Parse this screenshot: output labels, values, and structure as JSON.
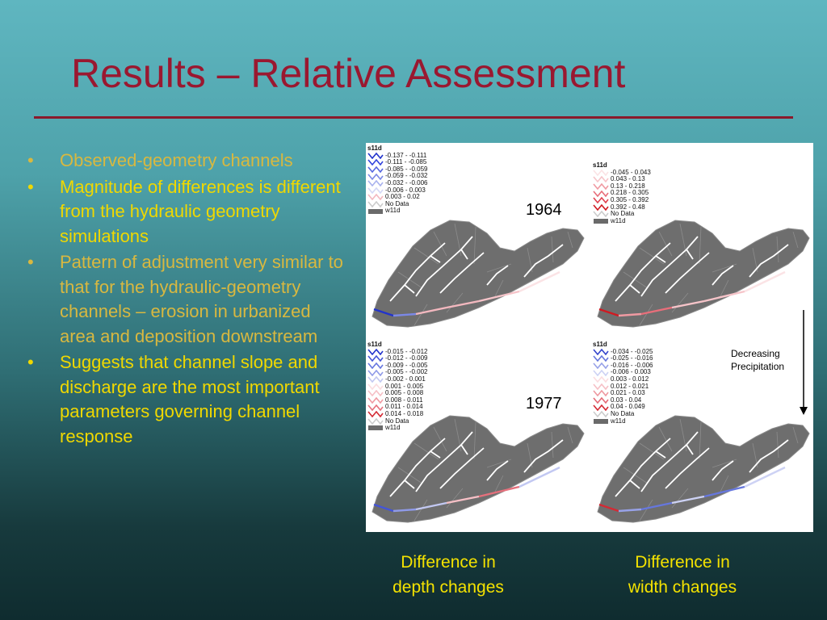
{
  "slide": {
    "title": "Results – Relative Assessment",
    "bullets": [
      {
        "text": "Observed-geometry channels",
        "dim": true
      },
      {
        "text": "Magnitude of differences is different from the hydraulic geometry simulations",
        "dim": false
      },
      {
        "text": "Pattern of adjustment very similar to that for the hydraulic-geometry channels – erosion in urbanized area and deposition downstream",
        "dim": true
      },
      {
        "text": "Suggests that channel slope and discharge are the most important parameters governing channel response",
        "dim": false
      }
    ],
    "bullet_glyph": "•"
  },
  "figure": {
    "year_1964": "1964",
    "year_1977": "1977",
    "decreasing": "Decreasing",
    "precipitation": "Precipitation",
    "panels": [
      {
        "legend_title": "s11d",
        "items": [
          {
            "label": "-0.137 - -0.111",
            "color": "#2233cc"
          },
          {
            "label": "-0.111 - -0.085",
            "color": "#3344dd"
          },
          {
            "label": "-0.085 - -0.059",
            "color": "#5566e0"
          },
          {
            "label": "-0.059 - -0.032",
            "color": "#7b88e6"
          },
          {
            "label": "-0.032 - -0.006",
            "color": "#a9b2ee"
          },
          {
            "label": "-0.006 - 0.003",
            "color": "#d4d8f6"
          },
          {
            "label": "0.003 - 0.02",
            "color": "#f3b8bf"
          },
          {
            "label": "No Data",
            "color": "none"
          },
          {
            "label": "w11d",
            "color": "swatch"
          }
        ]
      },
      {
        "legend_title": "s11d",
        "items": [
          {
            "label": "-0.045 - 0.043",
            "color": "#fbe3e5"
          },
          {
            "label": "0.043 - 0.13",
            "color": "#f6c4c9"
          },
          {
            "label": "0.13 - 0.218",
            "color": "#f09aa2"
          },
          {
            "label": "0.218 - 0.305",
            "color": "#e86e7a"
          },
          {
            "label": "0.305 - 0.392",
            "color": "#e0404e"
          },
          {
            "label": "0.392 - 0.48",
            "color": "#d01a22"
          },
          {
            "label": "No Data",
            "color": "none"
          },
          {
            "label": "w11d",
            "color": "swatch"
          }
        ]
      },
      {
        "legend_title": "s11d",
        "items": [
          {
            "label": "-0.015 - -0.012",
            "color": "#2233cc"
          },
          {
            "label": "-0.012 - -0.009",
            "color": "#4455d8"
          },
          {
            "label": "-0.009 - -0.005",
            "color": "#6677e0"
          },
          {
            "label": "-0.005 - -0.002",
            "color": "#8f9ae8"
          },
          {
            "label": "-0.002 - 0.001",
            "color": "#c2c8f2"
          },
          {
            "label": "0.001 - 0.005",
            "color": "#fbdde0"
          },
          {
            "label": "0.005 - 0.008",
            "color": "#f6c0c6"
          },
          {
            "label": "0.008 - 0.011",
            "color": "#f09aa2"
          },
          {
            "label": "0.011 - 0.014",
            "color": "#e6707c"
          },
          {
            "label": "0.014 - 0.018",
            "color": "#d42a34"
          },
          {
            "label": "No Data",
            "color": "none"
          },
          {
            "label": "w11d",
            "color": "swatch"
          }
        ]
      },
      {
        "legend_title": "s11d",
        "items": [
          {
            "label": "-0.034 - -0.025",
            "color": "#3344cc"
          },
          {
            "label": "-0.025 - -0.016",
            "color": "#6677dd"
          },
          {
            "label": "-0.016 - -0.006",
            "color": "#98a2e8"
          },
          {
            "label": "-0.006 - 0.003",
            "color": "#cdd2f4"
          },
          {
            "label": "0.003 - 0.012",
            "color": "#fbdde0"
          },
          {
            "label": "0.012 - 0.021",
            "color": "#f6c0c6"
          },
          {
            "label": "0.021 - 0.03",
            "color": "#ee98a0"
          },
          {
            "label": "0.03 - 0.04",
            "color": "#e46a76"
          },
          {
            "label": "0.04 - 0.049",
            "color": "#d42a34"
          },
          {
            "label": "No Data",
            "color": "none"
          },
          {
            "label": "w11d",
            "color": "swatch"
          }
        ]
      }
    ]
  },
  "captions": {
    "depth": [
      "Difference in",
      "depth changes"
    ],
    "width": [
      "Difference in",
      "width changes"
    ]
  },
  "colors": {
    "title": "#9a1830",
    "bullet": "#f0d800",
    "basin": "#6e6e6e",
    "basin_edge": "#8a8a8a",
    "stream": "#ffffff"
  }
}
